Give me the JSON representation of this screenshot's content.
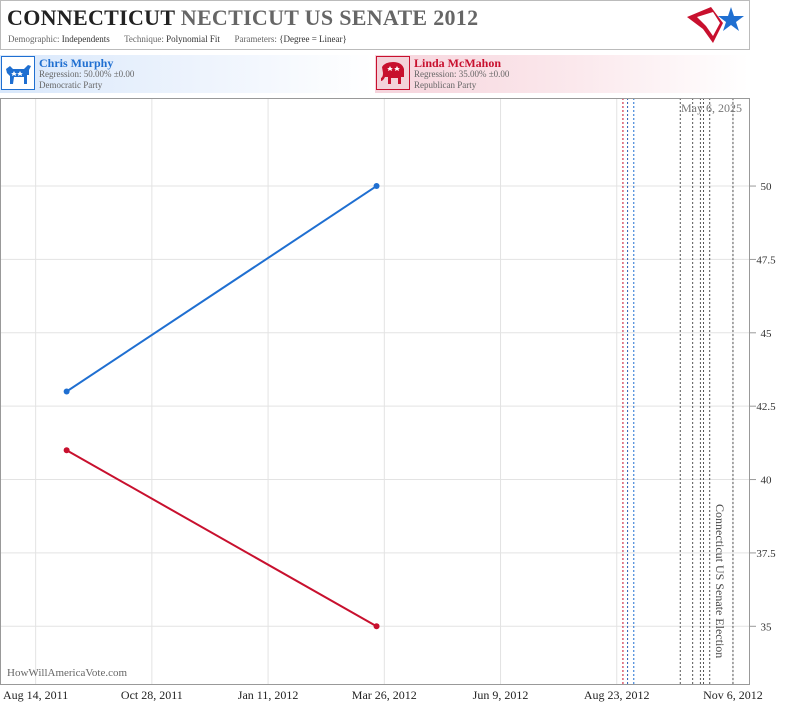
{
  "header": {
    "title_main": "CONNECTICUT",
    "title_sub": "NECTICUT US SENATE 2012",
    "demographic_label": "Demographic:",
    "demographic_value": "Independents",
    "technique_label": "Technique:",
    "technique_value": "Polynomial Fit",
    "parameters_label": "Parameters:",
    "parameters_value": "{Degree = Linear}"
  },
  "candidates": [
    {
      "name": "Chris Murphy",
      "regression": "Regression: 50.00% ±0.00",
      "party": "Democratic Party",
      "icon": "donkey-icon",
      "color": "#1f6fd1"
    },
    {
      "name": "Linda McMahon",
      "regression": "Regression: 35.00% ±0.00",
      "party": "Republican Party",
      "icon": "elephant-icon",
      "color": "#c8102e"
    }
  ],
  "chart_data": {
    "type": "line",
    "x_ticks": [
      "Aug 14, 2011",
      "Oct 28, 2011",
      "Jan 11, 2012",
      "Mar 26, 2012",
      "Jun 9, 2012",
      "Aug 23, 2012",
      "Nov 6, 2012"
    ],
    "y_ticks": [
      "35",
      "37.5",
      "40",
      "42.5",
      "45",
      "47.5",
      "50"
    ],
    "ylim": [
      33,
      53
    ],
    "xlim": [
      "2011-07-22",
      "2012-11-17"
    ],
    "grid": true,
    "y_axis_side": "right",
    "series": [
      {
        "name": "Chris Murphy",
        "color": "#1f6fd1",
        "points": [
          {
            "x": "2011-09-03",
            "y": 43
          },
          {
            "x": "2012-03-21",
            "y": 50
          }
        ]
      },
      {
        "name": "Linda McMahon",
        "color": "#c8102e",
        "points": [
          {
            "x": "2011-09-03",
            "y": 41
          },
          {
            "x": "2012-03-21",
            "y": 35
          }
        ]
      }
    ],
    "event_lines": [
      {
        "x": "2012-08-27",
        "color": "#c8102e"
      },
      {
        "x": "2012-08-30",
        "color": "#2b5bb5"
      },
      {
        "x": "2012-09-03",
        "color": "#1f6fd1"
      },
      {
        "x": "2012-10-03",
        "color": "#555555"
      },
      {
        "x": "2012-10-11",
        "color": "#555555"
      },
      {
        "x": "2012-10-16",
        "color": "#555555"
      },
      {
        "x": "2012-10-18",
        "color": "#555555"
      },
      {
        "x": "2012-10-22",
        "color": "#555555"
      },
      {
        "x": "2012-11-06",
        "color": "#555555"
      }
    ],
    "annotations": {
      "date_label": "May 6, 2025",
      "election_label": "Connecticut US Senate Election"
    }
  },
  "watermark": "HowWillAmericaVote.com"
}
